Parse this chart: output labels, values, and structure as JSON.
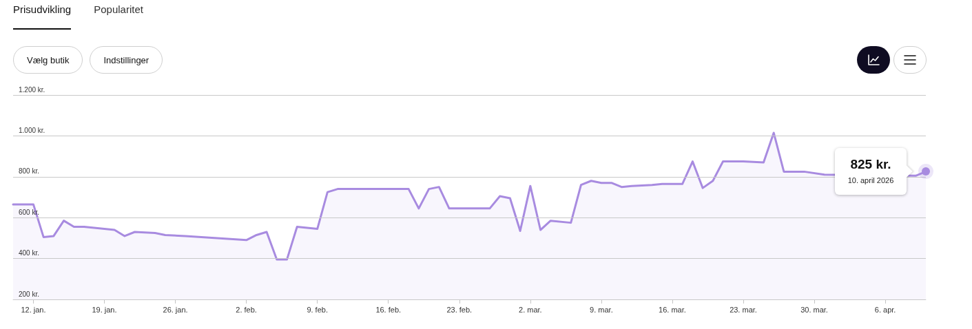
{
  "chart_data": {
    "type": "area",
    "title": "Prisudvikling",
    "annotations": [
      "Popularitet",
      "Vælg butik",
      "Indstillinger",
      "10. april 2026",
      {
        "text": "825 kr.",
        "x": "2026-04-10",
        "y": 825
      }
    ],
    "x": [
      "2026-01-10",
      "2026-01-12",
      "2026-01-13",
      "2026-01-14",
      "2026-01-15",
      "2026-01-16",
      "2026-01-17",
      "2026-01-20",
      "2026-01-21",
      "2026-01-22",
      "2026-01-24",
      "2026-01-25",
      "2026-01-27",
      "2026-02-02",
      "2026-02-03",
      "2026-02-04",
      "2026-02-05",
      "2026-02-06",
      "2026-02-07",
      "2026-02-09",
      "2026-02-10",
      "2026-02-11",
      "2026-02-18",
      "2026-02-19",
      "2026-02-20",
      "2026-02-21",
      "2026-02-22",
      "2026-02-26",
      "2026-02-27",
      "2026-02-28",
      "2026-03-01",
      "2026-03-02",
      "2026-03-03",
      "2026-03-04",
      "2026-03-06",
      "2026-03-07",
      "2026-03-08",
      "2026-03-09",
      "2026-03-10",
      "2026-03-11",
      "2026-03-12",
      "2026-03-14",
      "2026-03-15",
      "2026-03-17",
      "2026-03-18",
      "2026-03-19",
      "2026-03-20",
      "2026-03-21",
      "2026-03-23",
      "2026-03-25",
      "2026-03-26",
      "2026-03-27",
      "2026-03-29",
      "2026-03-31",
      "2026-04-09",
      "2026-04-10"
    ],
    "series": [
      {
        "color": "#a88be0",
        "values": [
          665,
          665,
          505,
          510,
          585,
          555,
          555,
          540,
          510,
          530,
          525,
          515,
          510,
          490,
          515,
          530,
          395,
          395,
          555,
          545,
          725,
          740,
          740,
          645,
          740,
          750,
          645,
          645,
          705,
          695,
          535,
          755,
          540,
          585,
          575,
          760,
          780,
          770,
          770,
          750,
          755,
          760,
          765,
          765,
          875,
          745,
          780,
          875,
          875,
          870,
          1015,
          825,
          825,
          810,
          805,
          825
        ]
      }
    ],
    "xlim": [
      "2026-01-10",
      "2026-04-10"
    ],
    "xticks": [
      {
        "value": "2026-01-12",
        "label": "12. jan."
      },
      {
        "value": "2026-01-19",
        "label": "19. jan."
      },
      {
        "value": "2026-01-26",
        "label": "26. jan."
      },
      {
        "value": "2026-02-02",
        "label": "2. feb."
      },
      {
        "value": "2026-02-09",
        "label": "9. feb."
      },
      {
        "value": "2026-02-16",
        "label": "16. feb."
      },
      {
        "value": "2026-02-23",
        "label": "23. feb."
      },
      {
        "value": "2026-03-02",
        "label": "2. mar."
      },
      {
        "value": "2026-03-09",
        "label": "9. mar."
      },
      {
        "value": "2026-03-16",
        "label": "16. mar."
      },
      {
        "value": "2026-03-23",
        "label": "23. mar."
      },
      {
        "value": "2026-03-30",
        "label": "30. mar."
      },
      {
        "value": "2026-04-06",
        "label": "6. apr."
      }
    ],
    "ylim": [
      200,
      1200
    ],
    "yticks": [
      {
        "value": 200,
        "label": "200 kr."
      },
      {
        "value": 400,
        "label": "400 kr."
      },
      {
        "value": 600,
        "label": "600 kr."
      },
      {
        "value": 800,
        "label": "800 kr."
      },
      {
        "value": 1000,
        "label": "1.000 kr."
      },
      {
        "value": 1200,
        "label": "1.200 kr."
      }
    ],
    "grid": "y",
    "marker": "none"
  }
}
